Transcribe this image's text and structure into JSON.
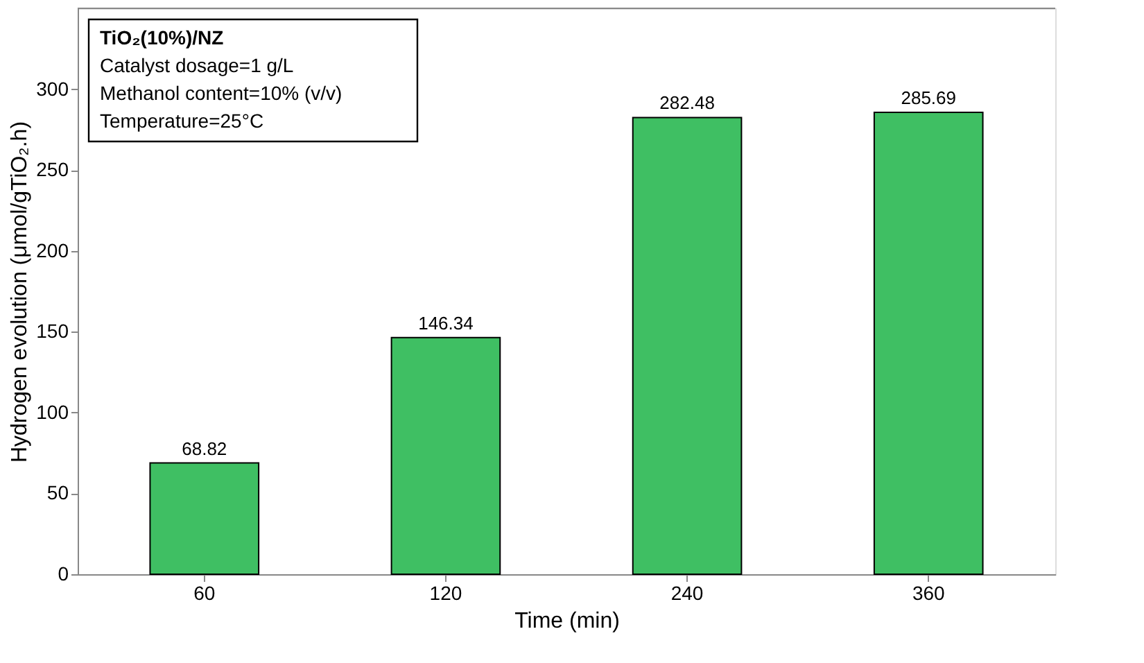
{
  "chart_data": {
    "type": "bar",
    "categories": [
      "60",
      "120",
      "240",
      "360"
    ],
    "values": [
      68.82,
      146.34,
      282.48,
      285.69
    ],
    "color": "#3fbf63",
    "xlabel": "Time (min)",
    "ylabel": "Hydrogen evolution (μmol/gTiO₂.h)",
    "ylim": [
      0,
      350
    ],
    "yticks": [
      0,
      50,
      100,
      150,
      200,
      250,
      300
    ],
    "data_labels": true,
    "grid": false,
    "annotations": [
      "TiO₂(10%)/NZ",
      "Catalyst dosage=1 g/L",
      "Methanol content=10% (v/v)",
      "Temperature=25°C"
    ]
  }
}
